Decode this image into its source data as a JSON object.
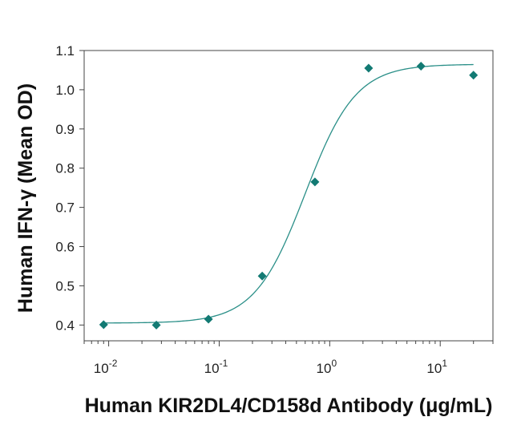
{
  "chart_data": {
    "type": "scatter",
    "title": "",
    "xlabel": "Human KIR2DL4/CD158d Antibody (μg/mL)",
    "ylabel": "Human IFN-γ (Mean OD)",
    "x_scale": "log",
    "xlim": [
      0.006,
      30
    ],
    "ylim": [
      0.37,
      1.1
    ],
    "y_ticks": [
      0.4,
      0.5,
      0.6,
      0.7,
      0.8,
      0.9,
      1.0,
      1.1
    ],
    "y_tick_labels": [
      "0.4",
      "0.5",
      "0.6",
      "0.7",
      "0.8",
      "0.9",
      "1.0",
      "1.1"
    ],
    "x_ticks": [
      0.01,
      0.1,
      1,
      10
    ],
    "x_tick_labels": [
      {
        "base": "10",
        "exp": "-2"
      },
      {
        "base": "10",
        "exp": "-1"
      },
      {
        "base": "10",
        "exp": "0"
      },
      {
        "base": "10",
        "exp": "1"
      }
    ],
    "grid": false,
    "legend": "none",
    "series": [
      {
        "x": [
          0.009,
          0.027,
          0.08,
          0.245,
          0.735,
          2.25,
          6.7,
          20
        ],
        "y": [
          0.401,
          0.4,
          0.415,
          0.525,
          0.765,
          1.055,
          1.06,
          1.037
        ]
      }
    ],
    "fit_curve": {
      "bottom": 0.405,
      "top": 1.065,
      "ec50": 0.6,
      "hill": 1.9,
      "x_range": [
        0.009,
        20
      ]
    },
    "colors": {
      "marker": "#127a73",
      "curve": "#2a8f88",
      "axis": "#444444"
    }
  }
}
